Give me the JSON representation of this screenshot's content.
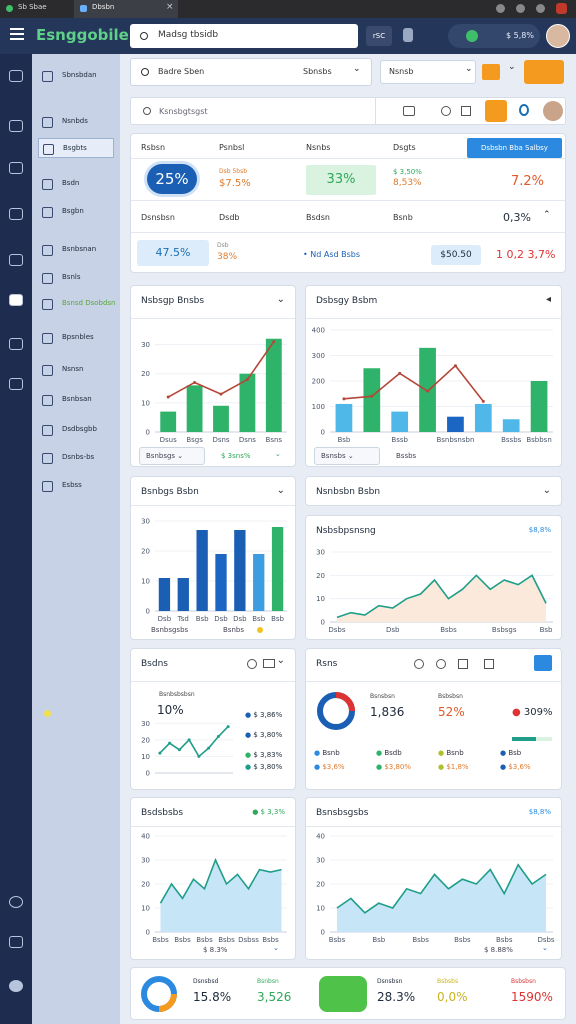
{
  "browser": {
    "tabs": [
      "Sb Sbae",
      "Dbsbn"
    ]
  },
  "header": {
    "logo": "Esnggobile",
    "search": "Madsg tbsidb",
    "button": "rSC",
    "status": "$ 5,8%"
  },
  "sidebar": {
    "items": [
      "Sbnsbdan",
      "Nsnbds",
      "Bsgbts",
      "Bsdn",
      "Bsgbn",
      "Bsnbsnan",
      "Bsnls",
      "Bsnsd Dsobdsn",
      "Bpsnbles",
      "Nsnsn",
      "Bsnbsan",
      "Dsdbsgbb",
      "Dsnbs-bs",
      "Esbss"
    ]
  },
  "filters": {
    "search": "Badre Sben",
    "select1": "Sbnsbs",
    "select2": "Nsnsb"
  },
  "toolbar": {
    "search": "Ksnsbgtsgst"
  },
  "kpi": {
    "button": "Dsbsbn Bba Salbsy",
    "headers": [
      "Rsbsn",
      "Psnbsl",
      "Nsnbs",
      "Dsgts"
    ],
    "row1": {
      "pill": "25%",
      "sub1": "Dsb 5bsb",
      "val1": "$7.5%",
      "box": "33%",
      "sub2": "$ 3,50%",
      "val2": "8,53%",
      "big": "7.2%"
    },
    "row2": [
      "Dsnsbsn",
      "Dsdb",
      "Bsdsn",
      "Bsnb",
      "0,3%"
    ],
    "row3": {
      "box1": "47.5%",
      "sub": "Dsb",
      "val": "38%",
      "link": "Nd Asd Bsbs",
      "box2": "$50.50",
      "big": "1 0,2 3,7%"
    }
  },
  "charts": [
    {
      "title": "Nsbsgp Bnsbs",
      "categories": [
        "Dsus",
        "Bsgs",
        "Dsns",
        "Dsns",
        "Bsns"
      ],
      "ylim": [
        0,
        35
      ],
      "yticks": [
        0,
        10,
        20,
        30
      ],
      "series": [
        {
          "type": "bar",
          "color": "#2fb36a",
          "values": [
            7,
            16,
            9,
            20,
            32
          ]
        },
        {
          "type": "line",
          "color": "#b5473a",
          "values": [
            12,
            17,
            13,
            18,
            31
          ]
        }
      ],
      "footer": [
        "Bsnbsgs",
        "$ 3sns%"
      ]
    },
    {
      "title": "Dsbsgy Bsbm",
      "categories": [
        "Bsb",
        null,
        "Bssb",
        null,
        "Bsnbsnsbn",
        null,
        "Bssbs",
        "Bsbbsn"
      ],
      "ylim": [
        0,
        400
      ],
      "yticks": [
        0,
        100,
        200,
        300,
        400
      ],
      "series": [
        {
          "type": "bar",
          "color": "#4fb8e8",
          "colors": [
            "#4fb8e8",
            "#2fb36a",
            "#4fb8e8",
            "#2fb36a",
            "#1a66c2",
            "#4fb8e8",
            "#4fb8e8",
            "#2fb36a"
          ],
          "values": [
            110,
            250,
            80,
            330,
            60,
            110,
            50,
            200
          ]
        },
        {
          "type": "line",
          "color": "#b5473a",
          "values": [
            130,
            140,
            230,
            160,
            260,
            120,
            null,
            null
          ]
        }
      ],
      "footer": [
        "Bsnsbs",
        "Bssbs"
      ]
    },
    {
      "title": "Bsnbgs Bsbn",
      "categories": [
        "Dsb",
        "Tsd",
        "Bsb",
        "Dsb",
        "Dsb",
        "Bsb",
        "Bsb"
      ],
      "ylim": [
        0,
        30
      ],
      "yticks": [
        0,
        10,
        20,
        30
      ],
      "series": [
        {
          "type": "bar",
          "color": "#1a66c2",
          "colors": [
            "#1a5fb4",
            "#1a5fb4",
            "#1a5fb4",
            "#1a66c2",
            "#1a5fb4",
            "#3c9ee0",
            "#2fb36a"
          ],
          "values": [
            11,
            11,
            27,
            19,
            27,
            19,
            28
          ]
        }
      ],
      "footer": [
        "Bsnbsgsbs",
        "Bsnbs"
      ]
    },
    {
      "title": "Nsbsbpsnsng",
      "badge": "$8,8%",
      "categories": [
        "Dsbs",
        null,
        null,
        null,
        "Dsb",
        null,
        null,
        null,
        "Bsbs",
        null,
        null,
        null,
        "Bsbsgs",
        null,
        null,
        "Bsb"
      ],
      "ylim": [
        0,
        30
      ],
      "yticks": [
        0,
        10,
        20,
        30
      ],
      "series": [
        {
          "type": "area",
          "color": "#1f9e8a",
          "fill": "#fbeadb",
          "values": [
            2,
            4,
            3,
            7,
            6,
            10,
            12,
            18,
            10,
            14,
            20,
            14,
            18,
            16,
            20,
            8
          ]
        }
      ]
    },
    {
      "title": "Bsdns",
      "label": "Bsnbsbsbsn",
      "value": "10%",
      "legend": [
        "$ 3,86%",
        "$ 3,80%",
        "$ 3,83%",
        "$ 3,80%"
      ],
      "categories": [
        null,
        null,
        null,
        null,
        null,
        null,
        null,
        null
      ],
      "ylim": [
        0,
        35
      ],
      "yticks": [
        0,
        10,
        20,
        30
      ],
      "series": [
        {
          "type": "line",
          "color": "#1f9e8a",
          "values": [
            12,
            18,
            14,
            20,
            10,
            15,
            22,
            28
          ]
        }
      ]
    },
    {
      "title": "Bsdsbsbs",
      "badge": "$ 3,3%",
      "categories": [
        "Bsbs",
        null,
        "Bsbs",
        null,
        "Bsbs",
        null,
        "Bsbs",
        null,
        "Dsbss",
        null,
        "Bsbs",
        null
      ],
      "ylim": [
        0,
        40
      ],
      "yticks": [
        0,
        10,
        20,
        30,
        40
      ],
      "series": [
        {
          "type": "area",
          "color": "#1f9e8a",
          "fill": "#c6e6f8",
          "values": [
            12,
            20,
            14,
            22,
            18,
            30,
            20,
            24,
            18,
            26,
            25,
            26
          ]
        }
      ],
      "footer": [
        "$ 8.3%"
      ]
    },
    {
      "title": "Bsnsbsgsbs",
      "badge": "$8,8%",
      "categories": [
        "Bsbs",
        null,
        null,
        "Bsb",
        null,
        null,
        "Bsbs",
        null,
        null,
        "Bsbs",
        null,
        null,
        "Bsbs",
        null,
        null,
        "Dsbs"
      ],
      "ylim": [
        0,
        40
      ],
      "yticks": [
        0,
        10,
        20,
        30,
        40
      ],
      "series": [
        {
          "type": "area",
          "color": "#1f9e8a",
          "fill": "#c6e6f8",
          "values": [
            10,
            14,
            8,
            12,
            10,
            18,
            16,
            24,
            18,
            22,
            20,
            26,
            16,
            28,
            20,
            24
          ]
        }
      ],
      "footer": [
        "$ 8.88%"
      ]
    }
  ],
  "donut_card": {
    "title": "Rsns",
    "stats": [
      {
        "label": "Bsnsbsn",
        "value": "1,836"
      },
      {
        "label": "Bsbsbsn",
        "value": "52%"
      }
    ],
    "badge": "309%",
    "legend": [
      "Bsnb",
      "Bsdb",
      "Bsnb",
      "Bsb",
      "$3,6%",
      "$3,80%",
      "$1,8%",
      "$3,6%"
    ]
  },
  "bottom": [
    {
      "label": "Dsnsbsd",
      "value": "15.8%"
    },
    {
      "label": "Bsnbsn",
      "value": "3,526"
    },
    {
      "label": "Dsnsbsn",
      "value": "28.3%"
    },
    {
      "label": "Bsbsbs",
      "value": "0,0%"
    },
    {
      "label": "Bsbsbsn",
      "value": "1590%"
    }
  ]
}
